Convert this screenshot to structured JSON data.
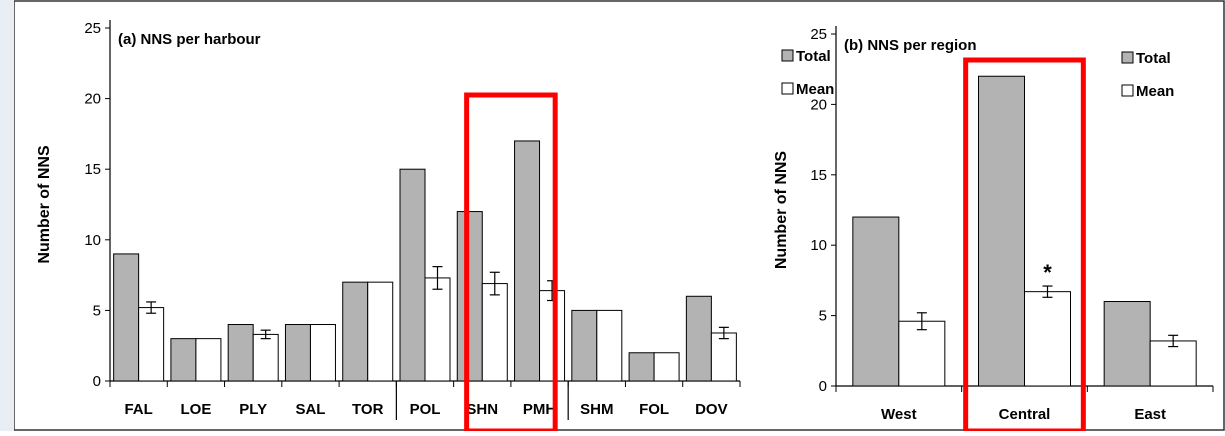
{
  "chart_data": [
    {
      "type": "bar",
      "title": "(a) NNS per harbour",
      "ylabel": "Number of NNS",
      "xlabel": "",
      "ylim": [
        0,
        25
      ],
      "yticks": [
        "0",
        "5",
        "10",
        "15",
        "20",
        "25"
      ],
      "categories": [
        "FAL",
        "LOE",
        "PLY",
        "SAL",
        "TOR",
        "POL",
        "SHN",
        "PMH",
        "SHM",
        "FOL",
        "DOV"
      ],
      "series": [
        {
          "name": "Total",
          "color": "#b3b3b3",
          "values": [
            9,
            3,
            4,
            4,
            7,
            15,
            12,
            17,
            5,
            2,
            6
          ]
        },
        {
          "name": "Mean",
          "color": "#ffffff",
          "values": [
            5.2,
            3,
            3.3,
            4,
            7,
            7.3,
            6.9,
            6.4,
            5,
            2,
            3.4
          ],
          "errors": [
            0.4,
            null,
            0.3,
            null,
            null,
            0.8,
            0.8,
            0.7,
            null,
            null,
            0.4
          ]
        }
      ],
      "legend": "top-right",
      "highlight": {
        "categories": [
          "SHN",
          "PMH"
        ],
        "color": "#ff0000"
      },
      "separators_after": [
        "TOR",
        "PMH"
      ]
    },
    {
      "type": "bar",
      "title": "(b) NNS per region",
      "ylabel": "Number of NNS",
      "xlabel": "",
      "ylim": [
        0,
        25
      ],
      "yticks": [
        "0",
        "5",
        "10",
        "15",
        "20",
        "25"
      ],
      "categories": [
        "West",
        "Central",
        "East"
      ],
      "series": [
        {
          "name": "Total",
          "color": "#b3b3b3",
          "values": [
            12,
            22,
            6
          ]
        },
        {
          "name": "Mean",
          "color": "#ffffff",
          "values": [
            4.6,
            6.7,
            3.2
          ],
          "errors": [
            0.6,
            0.4,
            0.4
          ]
        }
      ],
      "legend": "top-right",
      "annotations": [
        {
          "category": "Central",
          "series": "Mean",
          "text": "*"
        }
      ],
      "highlight": {
        "categories": [
          "Central"
        ],
        "color": "#ff0000"
      }
    }
  ]
}
